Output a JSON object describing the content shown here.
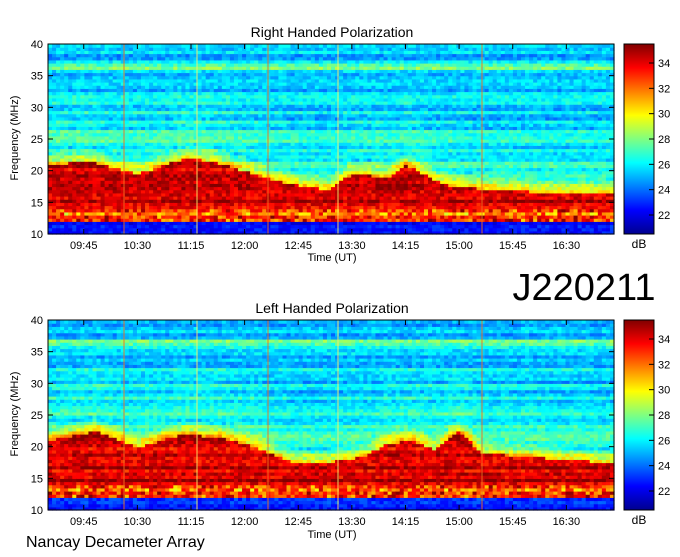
{
  "observation_id": "J220211",
  "instrument": "Nancay Decameter Array",
  "colorbar": {
    "unit": "dB",
    "ticks": [
      "22",
      "24",
      "26",
      "28",
      "30",
      "32",
      "34"
    ],
    "range": [
      20.5,
      35.5
    ],
    "colors": [
      "#00008f",
      "#0000ff",
      "#0080ff",
      "#00ffff",
      "#80ff80",
      "#ffff00",
      "#ff8000",
      "#ff0000",
      "#800000"
    ]
  },
  "chart_data": [
    {
      "type": "heatmap",
      "title": "Right Handed Polarization",
      "xlabel": "Time (UT)",
      "ylabel": "Frequency (MHz)",
      "xlim": [
        "09:15",
        "17:10"
      ],
      "ylim": [
        10,
        40
      ],
      "x_ticks": [
        "09:45",
        "10:30",
        "11:15",
        "12:00",
        "12:45",
        "13:30",
        "14:15",
        "15:00",
        "15:45",
        "16:30"
      ],
      "y_ticks": [
        "10",
        "15",
        "20",
        "25",
        "30",
        "35",
        "40"
      ],
      "emission_envelope": {
        "times": [
          "09:15",
          "09:50",
          "10:30",
          "11:10",
          "11:35",
          "12:00",
          "12:35",
          "13:10",
          "13:30",
          "14:00",
          "14:15",
          "14:45",
          "15:00",
          "15:30",
          "16:30",
          "17:10"
        ],
        "upper_freq_mhz": [
          21,
          21.5,
          19.5,
          22,
          21.5,
          20,
          18,
          17,
          19.5,
          19,
          21,
          18,
          17.5,
          17,
          16.5,
          16.5
        ]
      }
    },
    {
      "type": "heatmap",
      "title": "Left Handed Polarization",
      "xlabel": "Time (UT)",
      "ylabel": "Frequency (MHz)",
      "xlim": [
        "09:15",
        "17:10"
      ],
      "ylim": [
        10,
        40
      ],
      "x_ticks": [
        "09:45",
        "10:30",
        "11:15",
        "12:00",
        "12:45",
        "13:30",
        "14:15",
        "15:00",
        "15:45",
        "16:30"
      ],
      "y_ticks": [
        "10",
        "15",
        "20",
        "25",
        "30",
        "35",
        "40"
      ],
      "emission_envelope": {
        "times": [
          "09:15",
          "09:55",
          "10:30",
          "11:10",
          "11:40",
          "12:10",
          "12:40",
          "13:10",
          "13:40",
          "14:00",
          "14:20",
          "14:40",
          "15:00",
          "15:20",
          "16:30",
          "17:10"
        ],
        "upper_freq_mhz": [
          21,
          22.5,
          20,
          22,
          21.5,
          20,
          17.5,
          17.5,
          18.5,
          20.5,
          21,
          19.5,
          22.5,
          19,
          18,
          17.5
        ]
      }
    }
  ]
}
